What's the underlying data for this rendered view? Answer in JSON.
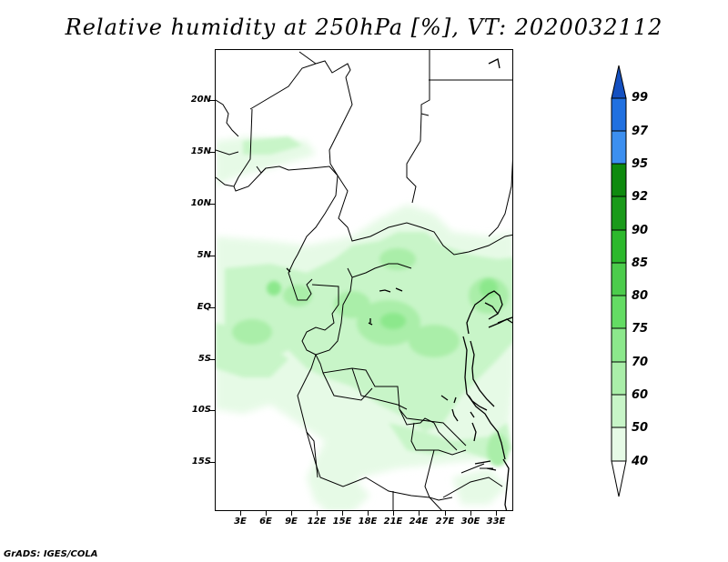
{
  "title": "Relative humidity at 250hPa [%], VT: 2020032112",
  "credit": "GrADS: IGES/COLA",
  "map": {
    "y_ticks": [
      "20N",
      "15N",
      "10N",
      "5N",
      "EQ",
      "5S",
      "10S",
      "15S"
    ],
    "x_ticks": [
      "3E",
      "6E",
      "9E",
      "12E",
      "15E",
      "18E",
      "21E",
      "24E",
      "27E",
      "30E",
      "33E"
    ]
  },
  "colorbar": {
    "levels": [
      "40",
      "50",
      "60",
      "70",
      "75",
      "80",
      "85",
      "90",
      "92",
      "95",
      "97",
      "99"
    ],
    "colors": [
      "#ffffff",
      "#e6fae6",
      "#c8f5c8",
      "#aaeea9",
      "#8ce88c",
      "#64dc64",
      "#4ccc4c",
      "#2cb82c",
      "#1a9a1a",
      "#0e8a0e",
      "#3c8ff0",
      "#2070e0",
      "#1450c0"
    ]
  }
}
